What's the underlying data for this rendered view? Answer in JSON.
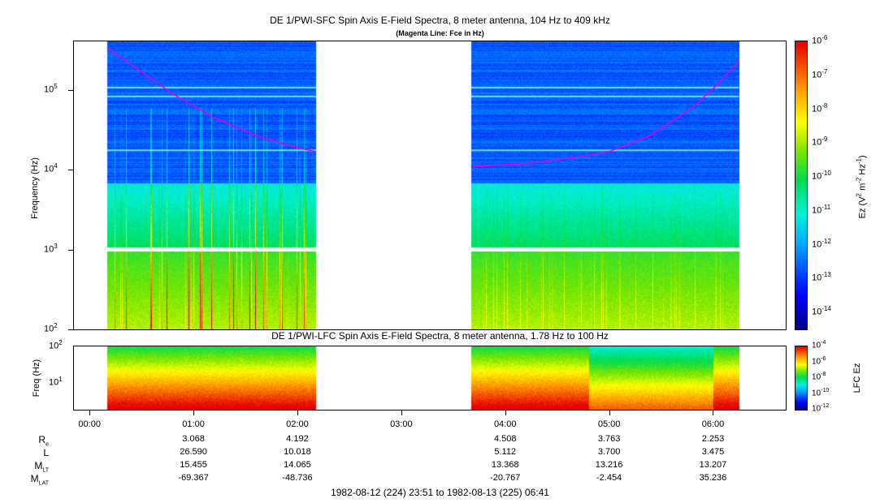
{
  "chart_data": {
    "type": "heatmap",
    "title": "DE 1/PWI-SFC  Spin Axis E-Field Spectra, 8 meter antenna, 104 Hz to 409 kHz",
    "subtitle": "(Magenta Line: Fce in Hz)",
    "ylabel": "Frequency (Hz)",
    "yscale": "log",
    "ylim": [
      100,
      409000
    ],
    "y_ticks": [
      "10",
      "10",
      "10",
      "10"
    ],
    "y_tick_exponents": [
      "2",
      "3",
      "4",
      "5"
    ],
    "x_ticks": [
      "00:00",
      "01:00",
      "02:00",
      "03:00",
      "04:00",
      "05:00",
      "06:00"
    ],
    "x_tick_hours": [
      0,
      1,
      2,
      3,
      4,
      5,
      6
    ],
    "xlim_hours": [
      -0.15,
      6.7
    ],
    "data_gap_hours": [
      2.18,
      3.67
    ],
    "coverage_hours": [
      [
        0.17,
        2.18
      ],
      [
        3.67,
        6.25
      ]
    ],
    "fce_line_hz": {
      "segment1": [
        [
          0.17,
          340000
        ],
        [
          0.5,
          170000
        ],
        [
          0.8,
          90000
        ],
        [
          1.2,
          45000
        ],
        [
          1.6,
          27000
        ],
        [
          2.0,
          19000
        ],
        [
          2.18,
          17000
        ]
      ],
      "segment2": [
        [
          3.67,
          11000
        ],
        [
          4.2,
          12000
        ],
        [
          4.7,
          14500
        ],
        [
          5.0,
          17000
        ],
        [
          5.4,
          27000
        ],
        [
          5.8,
          60000
        ],
        [
          6.05,
          120000
        ],
        [
          6.25,
          230000
        ]
      ]
    },
    "colorbar_label": "Ez (V",
    "colorbar_label_sup1": "2",
    "colorbar_label_mid": " m",
    "colorbar_label_sup2": "-2",
    "colorbar_label_mid2": " Hz",
    "colorbar_label_sup3": "-1",
    "colorbar_label_end": ")",
    "colorbar_ticks": [
      "10",
      "10",
      "10",
      "10",
      "10",
      "10",
      "10",
      "10",
      "10"
    ],
    "colorbar_exponents": [
      "-6",
      "-7",
      "-8",
      "-9",
      "-10",
      "-11",
      "-12",
      "-13",
      "-14"
    ],
    "colorbar_range": [
      -14.5,
      -6
    ],
    "lfc": {
      "title": "DE 1/PWI-LFC  Spin Axis E-Field Spectra, 8 meter antenna, 1.78 Hz to 100 Hz",
      "ylabel": "Freq (Hz)",
      "y_ticks": [
        "10",
        "10"
      ],
      "y_tick_exponents": [
        "2",
        "1"
      ],
      "ylim": [
        1.78,
        100
      ],
      "colorbar_label": "LFC Ez",
      "colorbar_ticks": [
        "10",
        "10",
        "10",
        "10",
        "10"
      ],
      "colorbar_exponents": [
        "-4",
        "-6",
        "-8",
        "-10",
        "-12"
      ]
    },
    "ephemeris": {
      "labels": [
        {
          "main": "R",
          "sub": "e"
        },
        {
          "main": "L",
          "sub": ""
        },
        {
          "main": "M",
          "sub": "LT"
        },
        {
          "main": "M",
          "sub": "LAT"
        }
      ],
      "columns": [
        {
          "hour": 1,
          "values": [
            "3.068",
            "26.590",
            "15.455",
            "-69.367"
          ]
        },
        {
          "hour": 2,
          "values": [
            "4.192",
            "10.018",
            "14.065",
            "-48.736"
          ]
        },
        {
          "hour": 4,
          "values": [
            "4.508",
            "5.112",
            "13.368",
            "-20.767"
          ]
        },
        {
          "hour": 5,
          "values": [
            "3.763",
            "3.700",
            "13.216",
            "-2.454"
          ]
        },
        {
          "hour": 6,
          "values": [
            "2.253",
            "3.475",
            "13.207",
            "35.236"
          ]
        }
      ]
    },
    "time_range": "1982-08-12 (224) 23:51 to 1982-08-13 (225) 06:41"
  }
}
